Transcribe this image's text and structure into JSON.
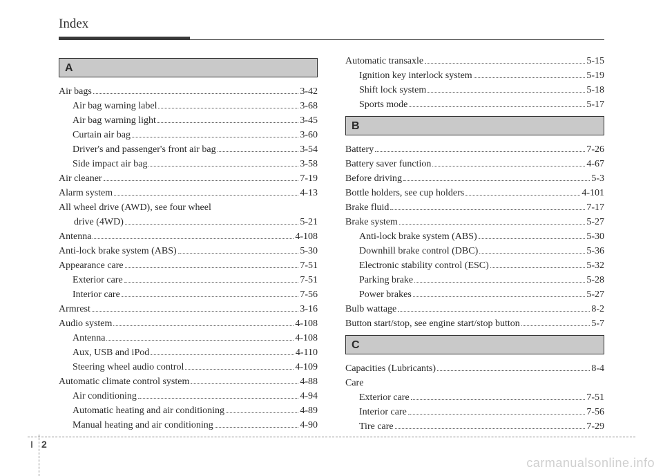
{
  "page_title": "Index",
  "footer": {
    "section": "I",
    "page": "2"
  },
  "watermark": "carmanualsonline.info",
  "styles": {
    "page_bg": "#ffffff",
    "text_color": "#2a2a2a",
    "rule_color": "#3a3a3a",
    "letter_bg": "#c9c9c9",
    "leader_color": "#555555",
    "watermark_color": "#cfcfcf",
    "title_fontsize": 19,
    "body_fontsize": 14,
    "letter_fontsize": 16
  },
  "columns": {
    "left": [
      {
        "type": "letter",
        "letter": "A"
      },
      {
        "type": "entry",
        "indent": 0,
        "label": "Air bags",
        "page": "3-42"
      },
      {
        "type": "entry",
        "indent": 1,
        "label": "Air bag warning label",
        "page": "3-68"
      },
      {
        "type": "entry",
        "indent": 1,
        "label": "Air bag warning light",
        "page": "3-45"
      },
      {
        "type": "entry",
        "indent": 1,
        "label": "Curtain air bag",
        "page": "3-60"
      },
      {
        "type": "entry",
        "indent": 1,
        "label": "Driver's and passenger's front air bag",
        "page": "3-54"
      },
      {
        "type": "entry",
        "indent": 1,
        "label": "Side impact air bag",
        "page": "3-58"
      },
      {
        "type": "entry",
        "indent": 0,
        "label": "Air cleaner",
        "page": "7-19"
      },
      {
        "type": "entry",
        "indent": 0,
        "label": "Alarm system",
        "page": "4-13"
      },
      {
        "type": "textline",
        "indent": 0,
        "text": "All wheel drive (AWD), see four wheel"
      },
      {
        "type": "entry",
        "indent": 0,
        "cont": true,
        "label": "drive (4WD)",
        "page": "5-21"
      },
      {
        "type": "entry",
        "indent": 0,
        "label": "Antenna",
        "page": "4-108"
      },
      {
        "type": "entry",
        "indent": 0,
        "label": "Anti-lock brake system (ABS)",
        "page": "5-30"
      },
      {
        "type": "entry",
        "indent": 0,
        "label": "Appearance care",
        "page": "7-51"
      },
      {
        "type": "entry",
        "indent": 1,
        "label": "Exterior care",
        "page": "7-51"
      },
      {
        "type": "entry",
        "indent": 1,
        "label": "Interior care",
        "page": "7-56"
      },
      {
        "type": "entry",
        "indent": 0,
        "label": "Armrest",
        "page": "3-16"
      },
      {
        "type": "entry",
        "indent": 0,
        "label": "Audio system",
        "page": "4-108"
      },
      {
        "type": "entry",
        "indent": 1,
        "label": "Antenna",
        "page": "4-108"
      },
      {
        "type": "entry",
        "indent": 1,
        "label": "Aux, USB and iPod",
        "page": "4-110"
      },
      {
        "type": "entry",
        "indent": 1,
        "label": "Steering wheel audio control",
        "page": "4-109"
      },
      {
        "type": "entry",
        "indent": 0,
        "label": "Automatic climate control system",
        "page": "4-88"
      },
      {
        "type": "entry",
        "indent": 1,
        "label": "Air conditioning",
        "page": "4-94"
      },
      {
        "type": "entry",
        "indent": 1,
        "label": "Automatic heating and air conditioning",
        "page": "4-89"
      },
      {
        "type": "entry",
        "indent": 1,
        "label": "Manual heating and air conditioning",
        "page": "4-90"
      }
    ],
    "right": [
      {
        "type": "entry",
        "indent": 0,
        "label": "Automatic transaxle",
        "page": "5-15"
      },
      {
        "type": "entry",
        "indent": 1,
        "label": "Ignition key interlock system",
        "page": "5-19"
      },
      {
        "type": "entry",
        "indent": 1,
        "label": "Shift lock system",
        "page": "5-18"
      },
      {
        "type": "entry",
        "indent": 1,
        "label": "Sports mode",
        "page": "5-17"
      },
      {
        "type": "letter",
        "letter": "B"
      },
      {
        "type": "entry",
        "indent": 0,
        "label": "Battery",
        "page": "7-26"
      },
      {
        "type": "entry",
        "indent": 0,
        "label": "Battery saver function",
        "page": "4-67"
      },
      {
        "type": "entry",
        "indent": 0,
        "label": "Before driving",
        "page": "5-3"
      },
      {
        "type": "entry",
        "indent": 0,
        "label": "Bottle holders, see cup holders",
        "page": "4-101"
      },
      {
        "type": "entry",
        "indent": 0,
        "label": "Brake fluid",
        "page": "7-17"
      },
      {
        "type": "entry",
        "indent": 0,
        "label": "Brake system",
        "page": "5-27"
      },
      {
        "type": "entry",
        "indent": 1,
        "label": "Anti-lock brake system (ABS)",
        "page": "5-30"
      },
      {
        "type": "entry",
        "indent": 1,
        "label": "Downhill brake control (DBC)",
        "page": "5-36"
      },
      {
        "type": "entry",
        "indent": 1,
        "label": "Electronic stability control (ESC)",
        "page": "5-32"
      },
      {
        "type": "entry",
        "indent": 1,
        "label": "Parking brake",
        "page": "5-28"
      },
      {
        "type": "entry",
        "indent": 1,
        "label": "Power brakes",
        "page": "5-27"
      },
      {
        "type": "entry",
        "indent": 0,
        "label": "Bulb wattage",
        "page": "8-2"
      },
      {
        "type": "entry",
        "indent": 0,
        "label": "Button start/stop, see engine start/stop button",
        "page": "5-7"
      },
      {
        "type": "letter",
        "letter": "C"
      },
      {
        "type": "entry",
        "indent": 0,
        "label": "Capacities (Lubricants)",
        "page": "8-4"
      },
      {
        "type": "textline",
        "indent": 0,
        "text": "Care"
      },
      {
        "type": "entry",
        "indent": 1,
        "label": "Exterior care",
        "page": "7-51"
      },
      {
        "type": "entry",
        "indent": 1,
        "label": "Interior care",
        "page": "7-56"
      },
      {
        "type": "entry",
        "indent": 1,
        "label": "Tire care",
        "page": "7-29"
      }
    ]
  }
}
